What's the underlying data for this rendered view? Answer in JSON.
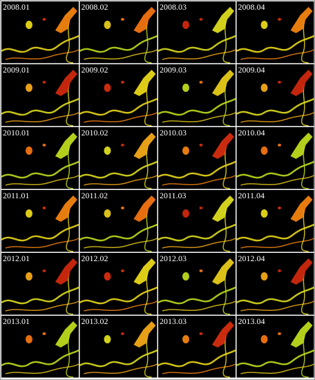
{
  "panels": [
    {
      "label": "2008.01"
    },
    {
      "label": "2008.02"
    },
    {
      "label": "2008.03"
    },
    {
      "label": "2008.04"
    },
    {
      "label": "2009.01"
    },
    {
      "label": "2009.02"
    },
    {
      "label": "2009.03"
    },
    {
      "label": "2009.04"
    },
    {
      "label": "2010.01"
    },
    {
      "label": "2010.02"
    },
    {
      "label": "2010.03"
    },
    {
      "label": "2010.04"
    },
    {
      "label": "2011.01"
    },
    {
      "label": "2011.02"
    },
    {
      "label": "2011.03"
    },
    {
      "label": "2011.04"
    },
    {
      "label": "2012.01"
    },
    {
      "label": "2012.02"
    },
    {
      "label": "2012.03"
    },
    {
      "label": "2012.04"
    },
    {
      "label": "2013.01"
    },
    {
      "label": "2013.02"
    },
    {
      "label": "2013.03"
    },
    {
      "label": "2013.04"
    }
  ]
}
